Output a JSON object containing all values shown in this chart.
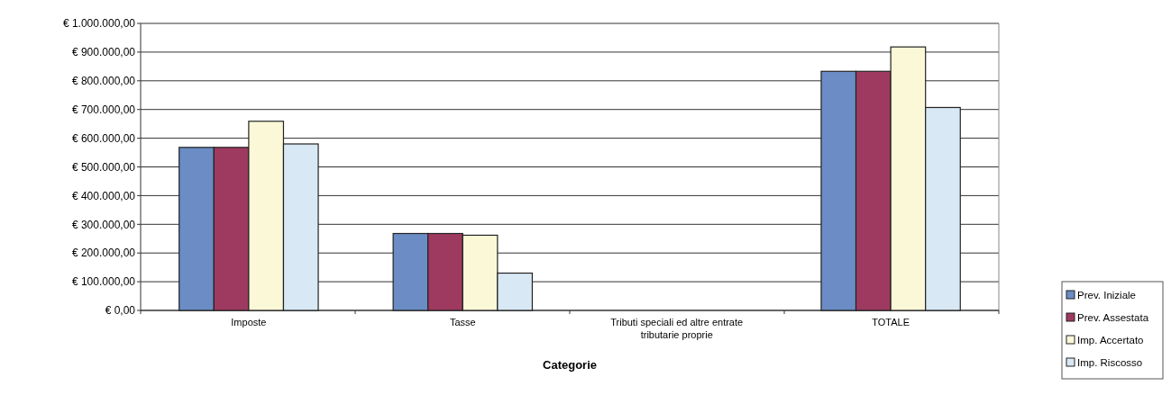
{
  "chart_data": {
    "type": "bar",
    "xlabel": "Categorie",
    "categories": [
      "Imposte",
      "Tasse",
      "Tributi speciali ed altre entrate tributarie proprie",
      "TOTALE"
    ],
    "series": [
      {
        "name": "Prev. Iniziale",
        "color": "#6b8cc4",
        "values": [
          568000,
          268000,
          0,
          833000
        ]
      },
      {
        "name": "Prev. Assestata",
        "color": "#9e3a60",
        "values": [
          568000,
          268000,
          0,
          833000
        ]
      },
      {
        "name": "Imp. Accertato",
        "color": "#fbf8d8",
        "values": [
          659000,
          262000,
          0,
          918000
        ]
      },
      {
        "name": "Imp. Riscosso",
        "color": "#d8e8f4",
        "values": [
          580000,
          130000,
          0,
          707000
        ]
      }
    ],
    "ylim": [
      0,
      1000000
    ],
    "yticks": [
      {
        "value": 0,
        "label": "€ 0,00"
      },
      {
        "value": 100000,
        "label": "€ 100.000,00"
      },
      {
        "value": 200000,
        "label": "€ 200.000,00"
      },
      {
        "value": 300000,
        "label": "€ 300.000,00"
      },
      {
        "value": 400000,
        "label": "€ 400.000,00"
      },
      {
        "value": 500000,
        "label": "€ 500.000,00"
      },
      {
        "value": 600000,
        "label": "€ 600.000,00"
      },
      {
        "value": 700000,
        "label": "€ 700.000,00"
      },
      {
        "value": 800000,
        "label": "€ 800.000,00"
      },
      {
        "value": 900000,
        "label": "€ 900.000,00"
      },
      {
        "value": 1000000,
        "label": "€ 1.000.000,00"
      }
    ],
    "grid": "y",
    "legend": "bottom right"
  }
}
